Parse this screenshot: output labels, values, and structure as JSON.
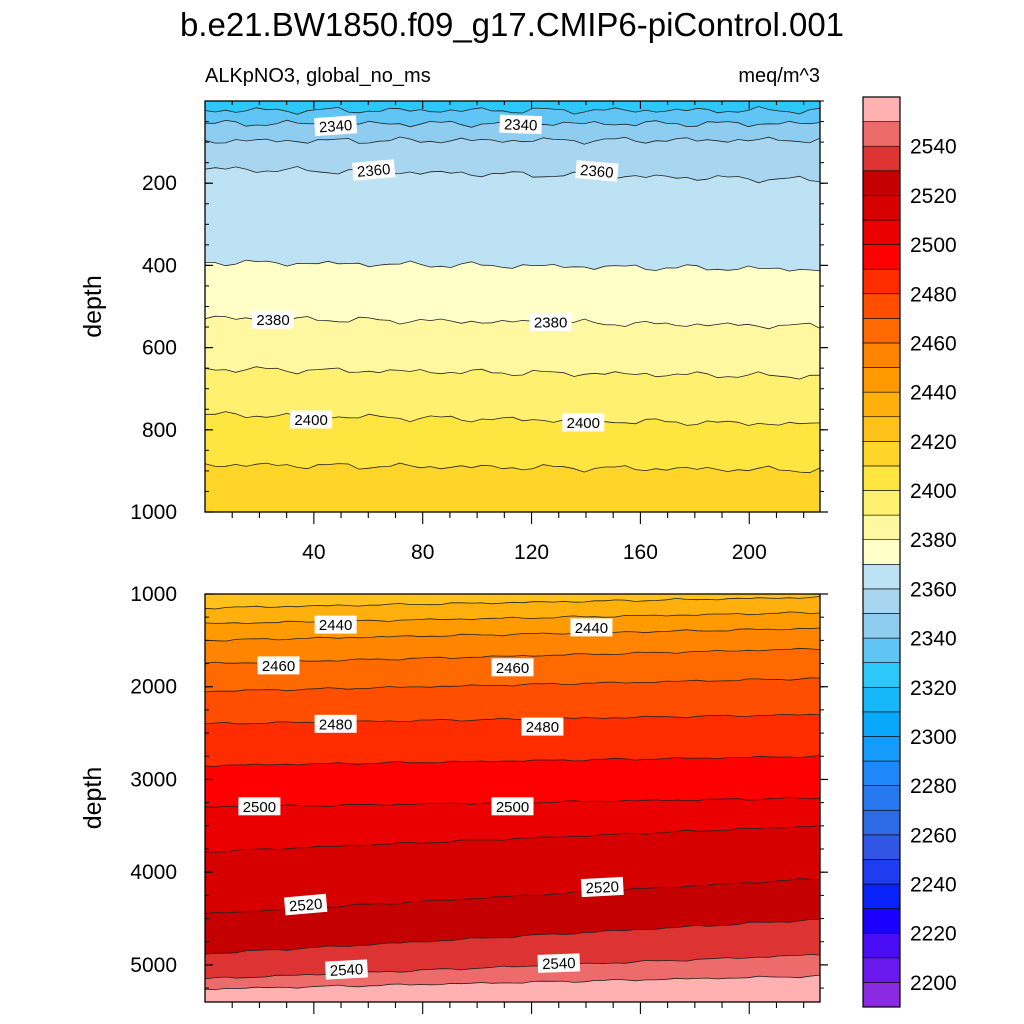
{
  "title": "b.e21.BW1850.f09_g17.CMIP6-piControl.001",
  "variable_label": "ALKpNO3, global_no_ms",
  "units_label": "meq/m^3",
  "chart_data": {
    "type": "contour",
    "title": "b.e21.BW1850.f09_g17.CMIP6-piControl.001",
    "panels": [
      {
        "name": "upper",
        "ylabel": "depth",
        "ylim": [
          1000,
          0
        ],
        "xlim": [
          0,
          226
        ],
        "xticks": [
          40,
          80,
          120,
          160,
          200
        ],
        "xtick_labels": [
          "40",
          "80",
          "120",
          "160",
          "200"
        ],
        "yticks": [
          200,
          400,
          600,
          800,
          1000
        ],
        "ytick_labels": [
          "200",
          "400",
          "600",
          "800",
          "1000"
        ],
        "contours": [
          {
            "value": 2330,
            "d_left": 23,
            "d_right": 23
          },
          {
            "value": 2340,
            "d_left": 55,
            "d_right": 55
          },
          {
            "value": 2350,
            "d_left": 97,
            "d_right": 95
          },
          {
            "value": 2360,
            "d_left": 165,
            "d_right": 192
          },
          {
            "value": 2370,
            "d_left": 392,
            "d_right": 410
          },
          {
            "value": 2380,
            "d_left": 528,
            "d_right": 548
          },
          {
            "value": 2390,
            "d_left": 652,
            "d_right": 670
          },
          {
            "value": 2400,
            "d_left": 763,
            "d_right": 787
          },
          {
            "value": 2410,
            "d_left": 885,
            "d_right": 898
          }
        ],
        "fill_top": 2325,
        "fill_bottom": 2415,
        "contour_labels": [
          {
            "text": "2340",
            "x": 48,
            "d": 60,
            "angle": -4
          },
          {
            "text": "2340",
            "x": 116,
            "d": 57,
            "angle": 2
          },
          {
            "text": "2360",
            "x": 62,
            "d": 168,
            "angle": -5
          },
          {
            "text": "2360",
            "x": 144,
            "d": 170,
            "angle": 5
          },
          {
            "text": "2380",
            "x": 25,
            "d": 532,
            "angle": 0
          },
          {
            "text": "2380",
            "x": 127,
            "d": 538,
            "angle": 0
          },
          {
            "text": "2400",
            "x": 39,
            "d": 775,
            "angle": 0
          },
          {
            "text": "2400",
            "x": 139,
            "d": 782,
            "angle": 0
          }
        ]
      },
      {
        "name": "lower",
        "ylabel": "depth",
        "ylim": [
          5400,
          1000
        ],
        "xlim": [
          0,
          226
        ],
        "yticks": [
          1000,
          2000,
          3000,
          4000,
          5000
        ],
        "ytick_labels": [
          "1000",
          "2000",
          "3000",
          "4000",
          "5000"
        ],
        "contours": [
          {
            "value": 2430,
            "d_left": 1150,
            "d_right": 1035
          },
          {
            "value": 2440,
            "d_left": 1320,
            "d_right": 1200
          },
          {
            "value": 2450,
            "d_left": 1500,
            "d_right": 1370
          },
          {
            "value": 2460,
            "d_left": 1750,
            "d_right": 1590
          },
          {
            "value": 2470,
            "d_left": 2050,
            "d_right": 1910
          },
          {
            "value": 2480,
            "d_left": 2400,
            "d_right": 2300
          },
          {
            "value": 2490,
            "d_left": 2850,
            "d_right": 2750
          },
          {
            "value": 2500,
            "d_left": 3300,
            "d_right": 3200
          },
          {
            "value": 2510,
            "d_left": 3780,
            "d_right": 3500
          },
          {
            "value": 2520,
            "d_left": 4450,
            "d_right": 4070
          },
          {
            "value": 2530,
            "d_left": 4880,
            "d_right": 4510
          },
          {
            "value": 2540,
            "d_left": 5150,
            "d_right": 4890
          },
          {
            "value": 2550,
            "d_left": 5260,
            "d_right": 5120
          }
        ],
        "fill_top": 2425,
        "fill_bottom": 2555,
        "contour_labels": [
          {
            "text": "2440",
            "x": 48,
            "d": 1330,
            "angle": 0
          },
          {
            "text": "2440",
            "x": 142,
            "d": 1360,
            "angle": 0
          },
          {
            "text": "2460",
            "x": 27,
            "d": 1770,
            "angle": 0
          },
          {
            "text": "2460",
            "x": 113,
            "d": 1790,
            "angle": 0
          },
          {
            "text": "2480",
            "x": 48,
            "d": 2400,
            "angle": 0
          },
          {
            "text": "2480",
            "x": 124,
            "d": 2430,
            "angle": 0
          },
          {
            "text": "2500",
            "x": 20,
            "d": 3290,
            "angle": 0
          },
          {
            "text": "2500",
            "x": 113,
            "d": 3290,
            "angle": 0
          },
          {
            "text": "2520",
            "x": 37,
            "d": 4350,
            "angle": -5
          },
          {
            "text": "2520",
            "x": 146,
            "d": 4160,
            "angle": -3
          },
          {
            "text": "2540",
            "x": 52,
            "d": 5050,
            "angle": -3
          },
          {
            "text": "2540",
            "x": 130,
            "d": 4980,
            "angle": -2
          }
        ]
      }
    ],
    "colorbar": {
      "levels": [
        2200,
        2210,
        2220,
        2230,
        2240,
        2250,
        2260,
        2270,
        2280,
        2290,
        2300,
        2310,
        2320,
        2330,
        2340,
        2350,
        2360,
        2370,
        2380,
        2390,
        2400,
        2410,
        2420,
        2430,
        2440,
        2450,
        2460,
        2470,
        2480,
        2490,
        2500,
        2510,
        2520,
        2530,
        2540,
        2550
      ],
      "tick_labels": [
        "2200",
        "2220",
        "2240",
        "2260",
        "2280",
        "2300",
        "2320",
        "2340",
        "2360",
        "2380",
        "2400",
        "2420",
        "2440",
        "2460",
        "2480",
        "2500",
        "2520",
        "2540"
      ],
      "colors": [
        "#8a2be2",
        "#6a1aef",
        "#4a0cf5",
        "#1a00ff",
        "#0a22fa",
        "#1f3cf0",
        "#3156e6",
        "#2f6ae6",
        "#2878f0",
        "#1f88f8",
        "#149bfc",
        "#0aa8fc",
        "#16b8fa",
        "#2cc8fa",
        "#60c4f5",
        "#8ecdf0",
        "#a8d5ef",
        "#bde2f3",
        "#ffffc8",
        "#fff8a0",
        "#fff070",
        "#ffe540",
        "#ffd52a",
        "#ffc21a",
        "#ffb00c",
        "#ff9b00",
        "#ff8400",
        "#ff6a00",
        "#ff4e00",
        "#ff2c00",
        "#ff0000",
        "#ea0000",
        "#d60000",
        "#c40000",
        "#dd3333",
        "#ee6b6b",
        "#ffb0b0"
      ]
    }
  }
}
